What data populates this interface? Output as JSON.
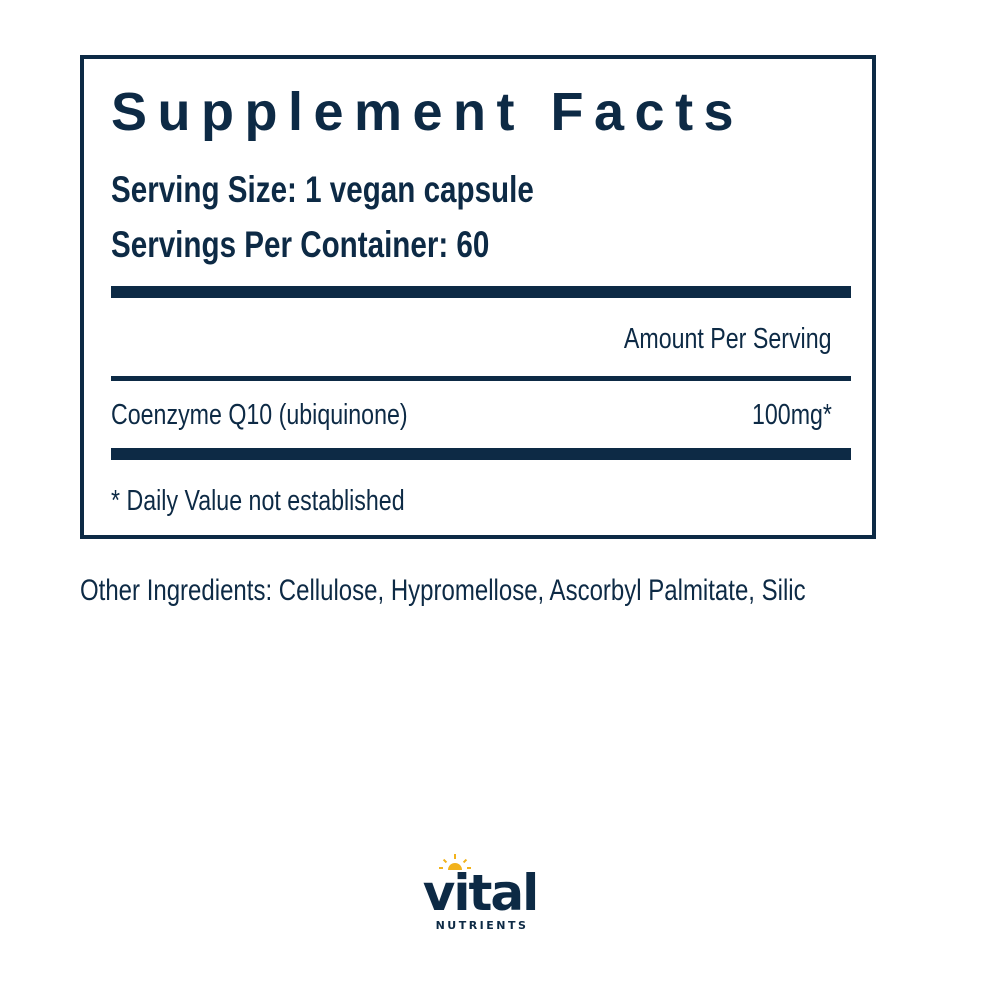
{
  "label": {
    "title": "Supplement Facts",
    "serving_size": "Serving Size: 1 vegan capsule",
    "servings_per_container": "Servings Per Container: 60",
    "amount_header": "Amount Per Serving",
    "ingredients": [
      {
        "name": "Coenzyme Q10 (ubiquinone)",
        "amount": "100mg*"
      }
    ],
    "footnote": "* Daily Value not established"
  },
  "other_ingredients": "Other Ingredients: Cellulose, Hypromellose, Ascorbyl Palmitate, Silic",
  "brand": {
    "name": "vital",
    "tagline": "NUTRIENTS"
  },
  "colors": {
    "navy": "#0d2a45",
    "sun": "#f2b21b"
  }
}
